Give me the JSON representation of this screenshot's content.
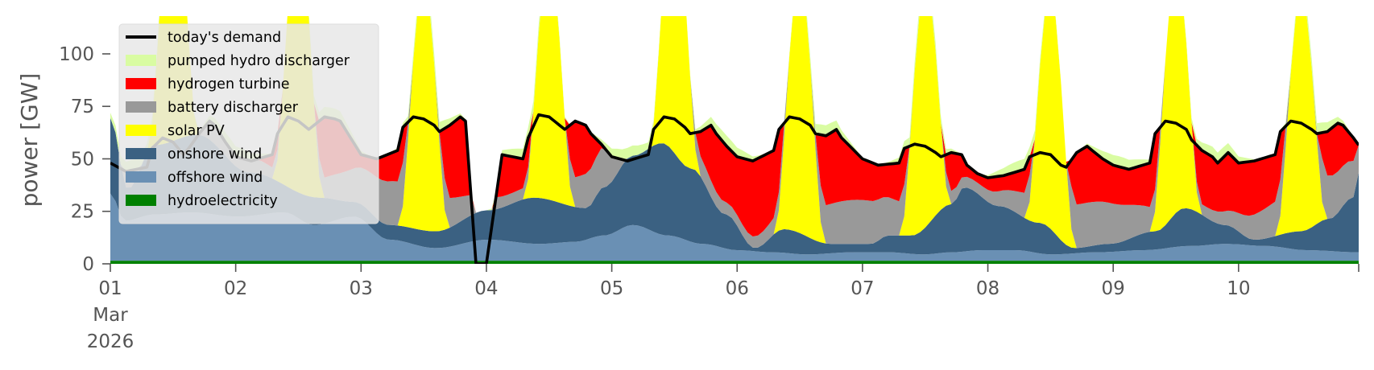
{
  "chart_data": {
    "type": "area",
    "ylabel": "power [GW]",
    "ylim": [
      0,
      118
    ],
    "xlim": [
      "2026-03-01T00:00",
      "2026-03-10T23:00"
    ],
    "y_ticks": [
      0,
      25,
      50,
      75,
      100
    ],
    "x_ticks": [
      {
        "x": "2026-03-01T00:00",
        "label": "01",
        "sublabel": "Mar",
        "sublabel2": "2026"
      },
      {
        "x": "2026-03-02T00:00",
        "label": "02"
      },
      {
        "x": "2026-03-03T00:00",
        "label": "03"
      },
      {
        "x": "2026-03-04T00:00",
        "label": "04"
      },
      {
        "x": "2026-03-05T00:00",
        "label": "05"
      },
      {
        "x": "2026-03-06T00:00",
        "label": "06"
      },
      {
        "x": "2026-03-07T00:00",
        "label": "07"
      },
      {
        "x": "2026-03-08T00:00",
        "label": "08"
      },
      {
        "x": "2026-03-09T00:00",
        "label": "09"
      },
      {
        "x": "2026-03-10T00:00",
        "label": "10"
      }
    ],
    "grid": false,
    "legend_position": "top-left",
    "stack_order": [
      "hydroelectricity",
      "offshore wind",
      "onshore wind",
      "solar PV",
      "battery discharger",
      "hydrogen turbine",
      "pumped hydro discharger"
    ],
    "series_colors": {
      "hydroelectricity": "#008000",
      "offshore wind": "#6a90b4",
      "onshore wind": "#3b6182",
      "solar PV": "#ffff00",
      "battery discharger": "#999999",
      "hydrogen turbine": "#ff0000",
      "pumped hydro discharger": "#d9fca2",
      "today's demand": "#000000"
    },
    "demand_knots_daily_hours": [
      0,
      3,
      7,
      8,
      10,
      12,
      14,
      15,
      17,
      19,
      20,
      22,
      24
    ],
    "demand_knots_values": [
      [
        48,
        44,
        46,
        55,
        60,
        58,
        52,
        55,
        62,
        68,
        66,
        58,
        51
      ],
      [
        51,
        49,
        52,
        62,
        70,
        68,
        64,
        66,
        70,
        69,
        68,
        60,
        52
      ],
      [
        52,
        50,
        54,
        65,
        70,
        69,
        66,
        63,
        66,
        70,
        68,
        0,
        0
      ],
      [
        0,
        52,
        50,
        60,
        71,
        70,
        66,
        64,
        68,
        66,
        62,
        57,
        51
      ],
      [
        51,
        49,
        52,
        64,
        70,
        69,
        65,
        62,
        63,
        66,
        62,
        56,
        51
      ],
      [
        51,
        49,
        54,
        64,
        70,
        69,
        66,
        62,
        61,
        64,
        60,
        55,
        50
      ],
      [
        50,
        47,
        48,
        55,
        57,
        56,
        53,
        51,
        53,
        52,
        47,
        43,
        41
      ],
      [
        41,
        42,
        45,
        51,
        53,
        52,
        47,
        46,
        53,
        56,
        54,
        50,
        47
      ],
      [
        47,
        45,
        48,
        62,
        68,
        67,
        64,
        59,
        54,
        51,
        48,
        53,
        48
      ],
      [
        48,
        49,
        52,
        63,
        68,
        67,
        64,
        62,
        63,
        67,
        66,
        60,
        53
      ]
    ],
    "solar_peak_per_day": [
      130,
      128,
      120,
      117,
      125,
      124,
      117,
      113,
      118,
      114
    ],
    "onshore_wind_knots": [
      [
        0,
        68
      ],
      [
        6,
        34
      ],
      [
        15,
        55
      ],
      [
        30,
        60
      ],
      [
        48,
        42
      ],
      [
        72,
        30
      ],
      [
        84,
        28
      ],
      [
        96,
        17
      ],
      [
        112,
        14
      ],
      [
        130,
        24
      ],
      [
        146,
        30
      ],
      [
        164,
        25
      ],
      [
        170,
        35
      ],
      [
        180,
        50
      ],
      [
        190,
        56
      ],
      [
        200,
        44
      ],
      [
        212,
        22
      ],
      [
        222,
        6
      ],
      [
        232,
        15
      ],
      [
        248,
        8
      ],
      [
        262,
        8
      ],
      [
        268,
        12
      ],
      [
        276,
        12
      ],
      [
        290,
        27
      ],
      [
        294,
        35
      ],
      [
        306,
        26
      ],
      [
        320,
        18
      ],
      [
        332,
        6
      ],
      [
        344,
        8
      ],
      [
        360,
        14
      ],
      [
        370,
        25
      ],
      [
        384,
        17
      ],
      [
        394,
        10
      ],
      [
        410,
        14
      ],
      [
        420,
        20
      ],
      [
        428,
        30
      ],
      [
        430,
        42
      ]
    ],
    "offshore_wind_knots": [
      [
        0,
        32
      ],
      [
        5,
        19
      ],
      [
        15,
        22
      ],
      [
        28,
        23
      ],
      [
        44,
        21
      ],
      [
        60,
        23
      ],
      [
        70,
        17
      ],
      [
        84,
        21
      ],
      [
        96,
        10
      ],
      [
        112,
        6
      ],
      [
        130,
        10
      ],
      [
        148,
        8
      ],
      [
        160,
        9
      ],
      [
        170,
        12
      ],
      [
        180,
        17
      ],
      [
        192,
        12
      ],
      [
        204,
        8
      ],
      [
        216,
        5
      ],
      [
        228,
        4
      ],
      [
        240,
        3
      ],
      [
        256,
        4
      ],
      [
        268,
        4
      ],
      [
        280,
        3
      ],
      [
        290,
        4
      ],
      [
        300,
        5
      ],
      [
        312,
        5
      ],
      [
        324,
        3
      ],
      [
        340,
        4
      ],
      [
        356,
        5
      ],
      [
        372,
        7
      ],
      [
        384,
        8
      ],
      [
        398,
        7
      ],
      [
        412,
        5
      ],
      [
        430,
        4
      ]
    ],
    "hydroelectricity_level": 1.5,
    "battery_shape": {
      "base": 13,
      "amplitude": 8
    },
    "pumped_hydro_shape": {
      "amplitude": 5
    },
    "series_labels": [
      "today's demand",
      "pumped hydro discharger",
      "hydrogen turbine",
      "battery discharger",
      "solar PV",
      "onshore wind",
      "offshore wind",
      "hydroelectricity"
    ]
  }
}
